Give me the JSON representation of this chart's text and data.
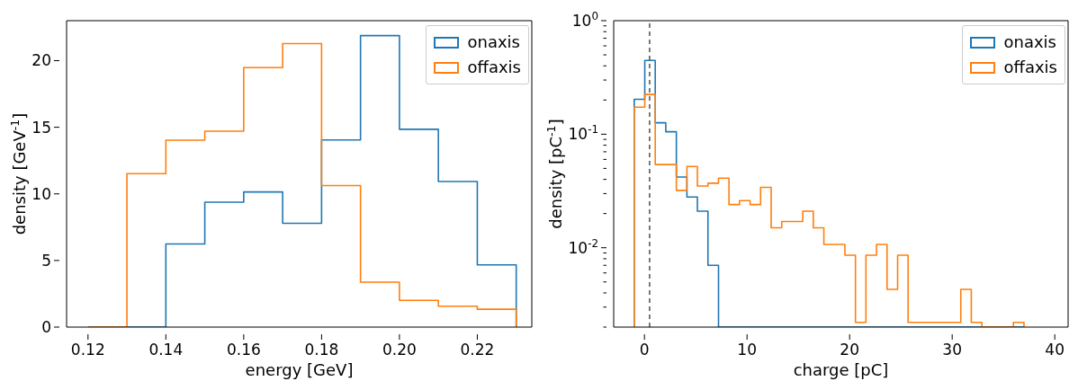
{
  "chart_data": [
    {
      "type": "histogram",
      "xlabel": "energy [GeV]",
      "ylabel": "density [GeV$^{-1}$]",
      "bins": [
        0.12,
        0.13,
        0.14,
        0.15,
        0.16,
        0.17,
        0.18,
        0.19,
        0.2,
        0.21,
        0.22,
        0.23
      ],
      "series": [
        {
          "name": "onaxis",
          "color": "#1f77b4",
          "values": [
            0,
            0,
            6.24,
            9.38,
            10.14,
            7.79,
            14.05,
            21.88,
            14.85,
            10.93,
            4.67
          ]
        },
        {
          "name": "offaxis",
          "color": "#ff7f0e",
          "values": [
            0,
            11.52,
            14.03,
            14.7,
            19.48,
            21.28,
            10.62,
            3.37,
            2.01,
            1.57,
            1.34
          ]
        }
      ],
      "xlim": [
        0.1145,
        0.234
      ],
      "ylim": [
        0,
        23
      ],
      "xticks": [
        0.12,
        0.14,
        0.16,
        0.18,
        {
          "value": 0.2,
          "label": "0.20"
        },
        0.22
      ],
      "yticks": [
        0,
        5,
        10,
        15,
        20
      ],
      "grid": false,
      "legend": "top right"
    },
    {
      "type": "histogram",
      "xlabel": "charge [pC]",
      "ylabel": "density [pC$^{-1}$]",
      "bins": [
        -1,
        0.03,
        1.05,
        2.08,
        3.11,
        4.14,
        5.16,
        6.19,
        7.22,
        8.24,
        9.27,
        10.3,
        11.32,
        12.35,
        13.38,
        14.41,
        15.43,
        16.46,
        17.49,
        18.51,
        19.54,
        20.57,
        21.59,
        22.62,
        23.65,
        24.68,
        25.7,
        26.73,
        27.76,
        28.78,
        29.81,
        30.84,
        31.86,
        32.89,
        33.92,
        34.95,
        35.97,
        37.0
      ],
      "series": [
        {
          "name": "onaxis",
          "color": "#1f77b4",
          "values": [
            0.203,
            0.447,
            0.126,
            0.105,
            0.042,
            0.028,
            0.021,
            0.007,
            null,
            null,
            null,
            null,
            null,
            null,
            null,
            null,
            null,
            null,
            null,
            null,
            null,
            null,
            null,
            null,
            null,
            null,
            null,
            null,
            null,
            null,
            null,
            null,
            null,
            null,
            null,
            null,
            null
          ]
        },
        {
          "name": "offaxis",
          "color": "#ff7f0e",
          "values": [
            0.173,
            0.224,
            0.054,
            0.054,
            0.032,
            0.052,
            0.035,
            0.037,
            0.041,
            0.024,
            0.026,
            0.024,
            0.034,
            0.015,
            0.017,
            0.017,
            0.021,
            0.015,
            0.0107,
            0.0107,
            0.0086,
            0.0022,
            0.0086,
            0.0107,
            0.0043,
            0.0086,
            0.0022,
            0.0022,
            0.0022,
            0.0022,
            0.0022,
            0.0043,
            0.0022,
            null,
            null,
            null,
            0.0022
          ]
        }
      ],
      "xlim": [
        -3,
        41.3
      ],
      "ylim": [
        0.002,
        1
      ],
      "log": "y",
      "xticks": [
        0,
        10,
        20,
        30,
        40
      ],
      "yticks": [
        {
          "value": 0.002,
          "label": null
        },
        {
          "value": 0.003,
          "label": null
        },
        {
          "value": 0.004,
          "label": null
        },
        {
          "value": 0.005,
          "label": null
        },
        {
          "value": 0.006,
          "label": null
        },
        {
          "value": 0.007,
          "label": null
        },
        {
          "value": 0.008,
          "label": null
        },
        {
          "value": 0.009,
          "label": null
        },
        {
          "value": 0.01,
          "label": "10$^{-2}$"
        },
        {
          "value": 0.02,
          "label": null
        },
        {
          "value": 0.03,
          "label": null
        },
        {
          "value": 0.04,
          "label": null
        },
        {
          "value": 0.05,
          "label": null
        },
        {
          "value": 0.06,
          "label": null
        },
        {
          "value": 0.07,
          "label": null
        },
        {
          "value": 0.08,
          "label": null
        },
        {
          "value": 0.09,
          "label": null
        },
        {
          "value": 0.1,
          "label": "10$^{-1}$"
        },
        {
          "value": 0.2,
          "label": null
        },
        {
          "value": 0.3,
          "label": null
        },
        {
          "value": 0.4,
          "label": null
        },
        {
          "value": 0.5,
          "label": null
        },
        {
          "value": 0.6,
          "label": null
        },
        {
          "value": 0.7,
          "label": null
        },
        {
          "value": 0.8,
          "label": null
        },
        {
          "value": 0.9,
          "label": null
        },
        {
          "value": 1,
          "label": "10$^{0}$"
        }
      ],
      "ref_lines": [
        {
          "axis": "x",
          "value": 0.5,
          "color": "#444444",
          "line_style": "dashed"
        }
      ],
      "grid": false,
      "legend": "top right"
    }
  ]
}
